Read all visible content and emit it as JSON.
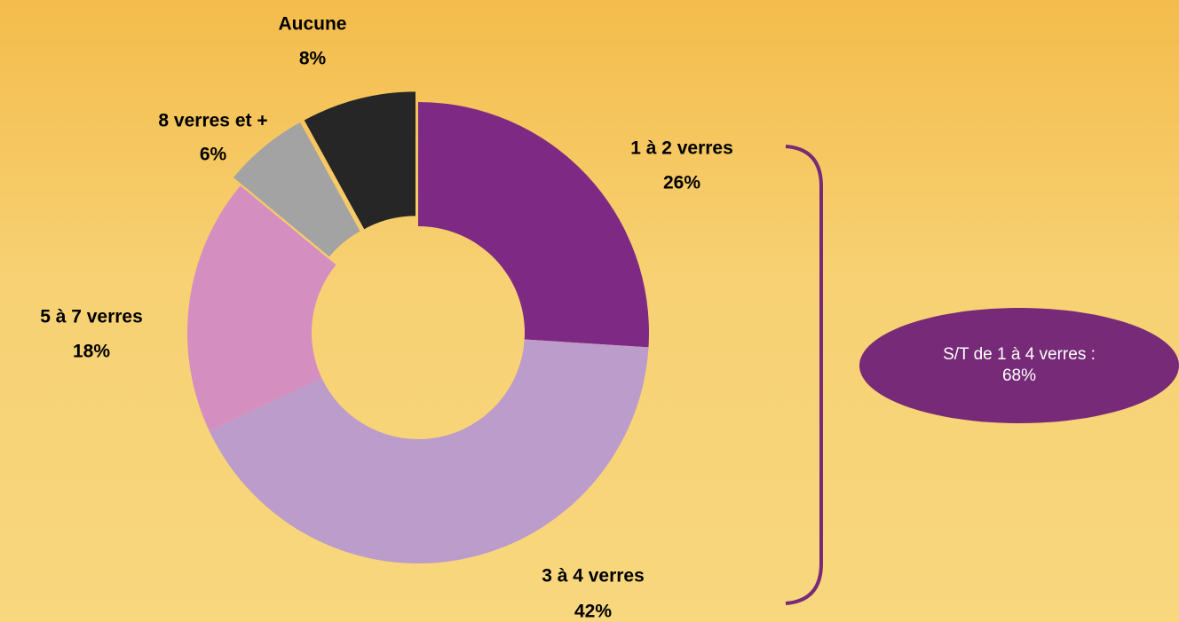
{
  "chart_data": {
    "type": "pie",
    "categories": [
      "1 à 2 verres",
      "3 à 4 verres",
      "5 à 7 verres",
      "8 verres et +",
      "Aucune"
    ],
    "values": [
      26,
      42,
      18,
      6,
      8
    ],
    "value_labels": [
      "26%",
      "42%",
      "18%",
      "6%",
      "8%"
    ],
    "colors": [
      "#7e2a84",
      "#bb9cca",
      "#d48fc0",
      "#a3a3a3",
      "#262626"
    ],
    "explode": [
      false,
      false,
      false,
      true,
      true
    ],
    "annotation": "S/T de 1 à 4 verres : 68%"
  }
}
